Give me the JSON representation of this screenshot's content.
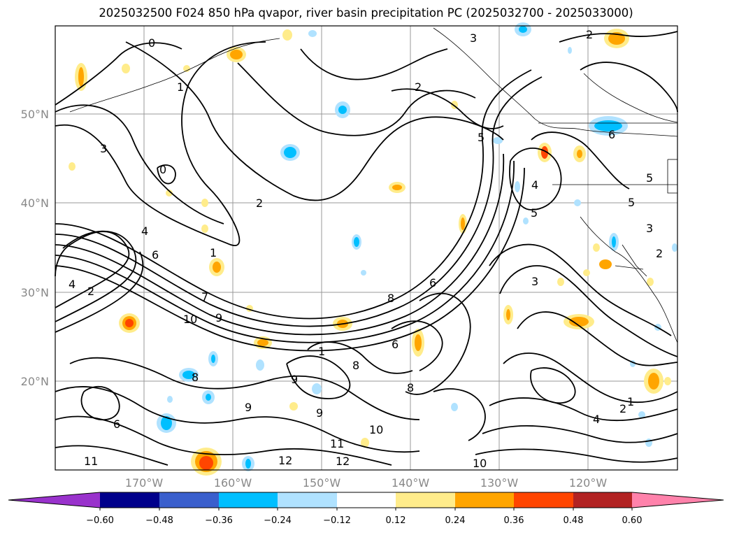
{
  "title": "2025032500 F024 850 hPa qvapor, river basin precipitation PC (2025032700 - 2025033000)",
  "map": {
    "lat_labels": [
      "50°N",
      "40°N",
      "30°N",
      "20°N"
    ],
    "lon_labels": [
      "170°W",
      "160°W",
      "150°W",
      "140°W",
      "130°W",
      "120°W"
    ],
    "contour_labels": [
      "0",
      "0",
      "1",
      "1",
      "2",
      "2",
      "2",
      "2",
      "2",
      "2",
      "3",
      "3",
      "3",
      "3",
      "4",
      "4",
      "4",
      "4",
      "5",
      "5",
      "5",
      "5",
      "6",
      "6",
      "6",
      "6",
      "6",
      "7",
      "8",
      "8",
      "8",
      "8",
      "9",
      "9",
      "9",
      "9",
      "10",
      "10",
      "10",
      "11",
      "11",
      "12",
      "12",
      "1",
      "1"
    ]
  },
  "colorbar": {
    "ticks": [
      "−0.60",
      "−0.48",
      "−0.36",
      "−0.24",
      "−0.12",
      "0.12",
      "0.24",
      "0.36",
      "0.48",
      "0.60"
    ],
    "colors": {
      "left_extend": "#9932cc",
      "c1": "#00008b",
      "c2": "#3a5fcd",
      "c3": "#00bfff",
      "c4": "#b0e2ff",
      "c5": "#ffffff",
      "c6": "#ffec8b",
      "c7": "#ffa500",
      "c8": "#ff4500",
      "c9": "#b22222",
      "right_extend": "#ff82ab"
    }
  }
}
